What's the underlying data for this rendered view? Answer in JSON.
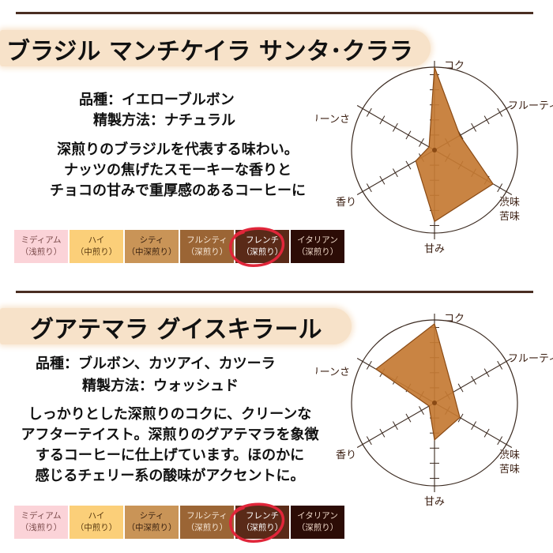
{
  "colors": {
    "rule": "#4a2e22",
    "brush": "#f7e2c9",
    "radar_fill": "#c47a33",
    "radar_stroke": "#8a4a14",
    "radar_axis": "#3b2a20",
    "highlight_circle": "#e0263a"
  },
  "roast_levels": [
    {
      "name": "ミディアム",
      "sub": "（浅煎り）",
      "bg": "#fbd3d8",
      "fg": "#7a4a4a"
    },
    {
      "name": "ハイ",
      "sub": "（中煎り）",
      "bg": "#fbcf79",
      "fg": "#5a3a10"
    },
    {
      "name": "シティ",
      "sub": "（中深煎り）",
      "bg": "#c99457",
      "fg": "#3a2210"
    },
    {
      "name": "フルシティ",
      "sub": "（深煎り）",
      "bg": "#9b6535",
      "fg": "#f6e7d7"
    },
    {
      "name": "フレンチ",
      "sub": "（深煎り）",
      "bg": "#5a2a18",
      "fg": "#ffffff"
    },
    {
      "name": "イタリアン",
      "sub": "（深煎り）",
      "bg": "#2c0c06",
      "fg": "#f0d9c9"
    }
  ],
  "radar_axes": [
    "コク",
    "フルーティ",
    "渋味 苦味",
    "甘み",
    "香り",
    "クリーンさ"
  ],
  "coffees": [
    {
      "title": "ブラジル マンチケイラ サンタ･クララ",
      "variety": "品種：イエローブルボン",
      "process": "精製方法：ナチュラル",
      "description": [
        "深煎りのブラジルを代表する味わい。",
        "ナッツの焦げたスモーキーな香りと",
        "チョコの甘みで重厚感のあるコーヒーに"
      ],
      "selected_roast": "フレンチ",
      "scores": [
        1.0,
        0.3,
        0.8,
        0.85,
        0.2,
        0.0
      ]
    },
    {
      "title": "グアテマラ グイスキラール",
      "variety": "品種：ブルボン、カツアイ、カツーラ",
      "process": "精製方法：ウォッシュド",
      "description": [
        "しっかりとした深煎りのコクに、クリーンな",
        "アフターテイスト。深煎りのグアテマラを象徴",
        "するコーヒーに仕上げています。ほのかに",
        "感じるチェリー系の酸味がアクセントに。"
      ],
      "selected_roast": "フレンチ",
      "scores": [
        0.95,
        0.2,
        0.3,
        0.4,
        0.0,
        0.8
      ]
    }
  ]
}
